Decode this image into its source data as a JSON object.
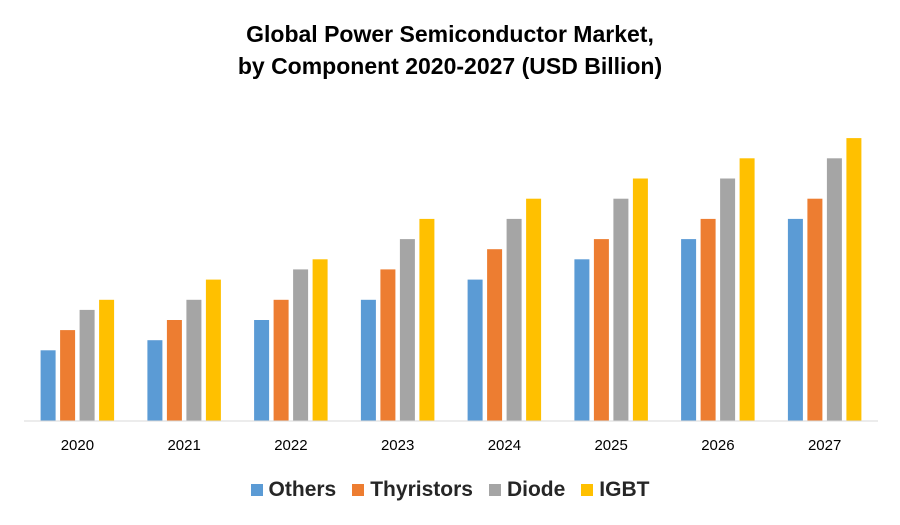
{
  "chart_data": {
    "type": "bar",
    "title_line1": "Global Power Semiconductor Market,",
    "title_line2": "by Component 2020-2027 (USD Billion)",
    "xlabel": "",
    "ylabel": "",
    "ylim": [
      0,
      145
    ],
    "grid": false,
    "legend_position": "bottom",
    "categories": [
      "2020",
      "2021",
      "2022",
      "2023",
      "2024",
      "2025",
      "2026",
      "2027"
    ],
    "series": [
      {
        "name": "Others",
        "color": "#5B9BD5",
        "values": [
          35,
          40,
          50,
          60,
          70,
          80,
          90,
          100
        ]
      },
      {
        "name": "Thyristors",
        "color": "#ED7D31",
        "values": [
          45,
          50,
          60,
          75,
          85,
          90,
          100,
          110
        ]
      },
      {
        "name": "Diode",
        "color": "#A5A5A5",
        "values": [
          55,
          60,
          75,
          90,
          100,
          110,
          120,
          130
        ]
      },
      {
        "name": "IGBT",
        "color": "#FFC000",
        "values": [
          60,
          70,
          80,
          100,
          110,
          120,
          130,
          140
        ]
      }
    ]
  }
}
